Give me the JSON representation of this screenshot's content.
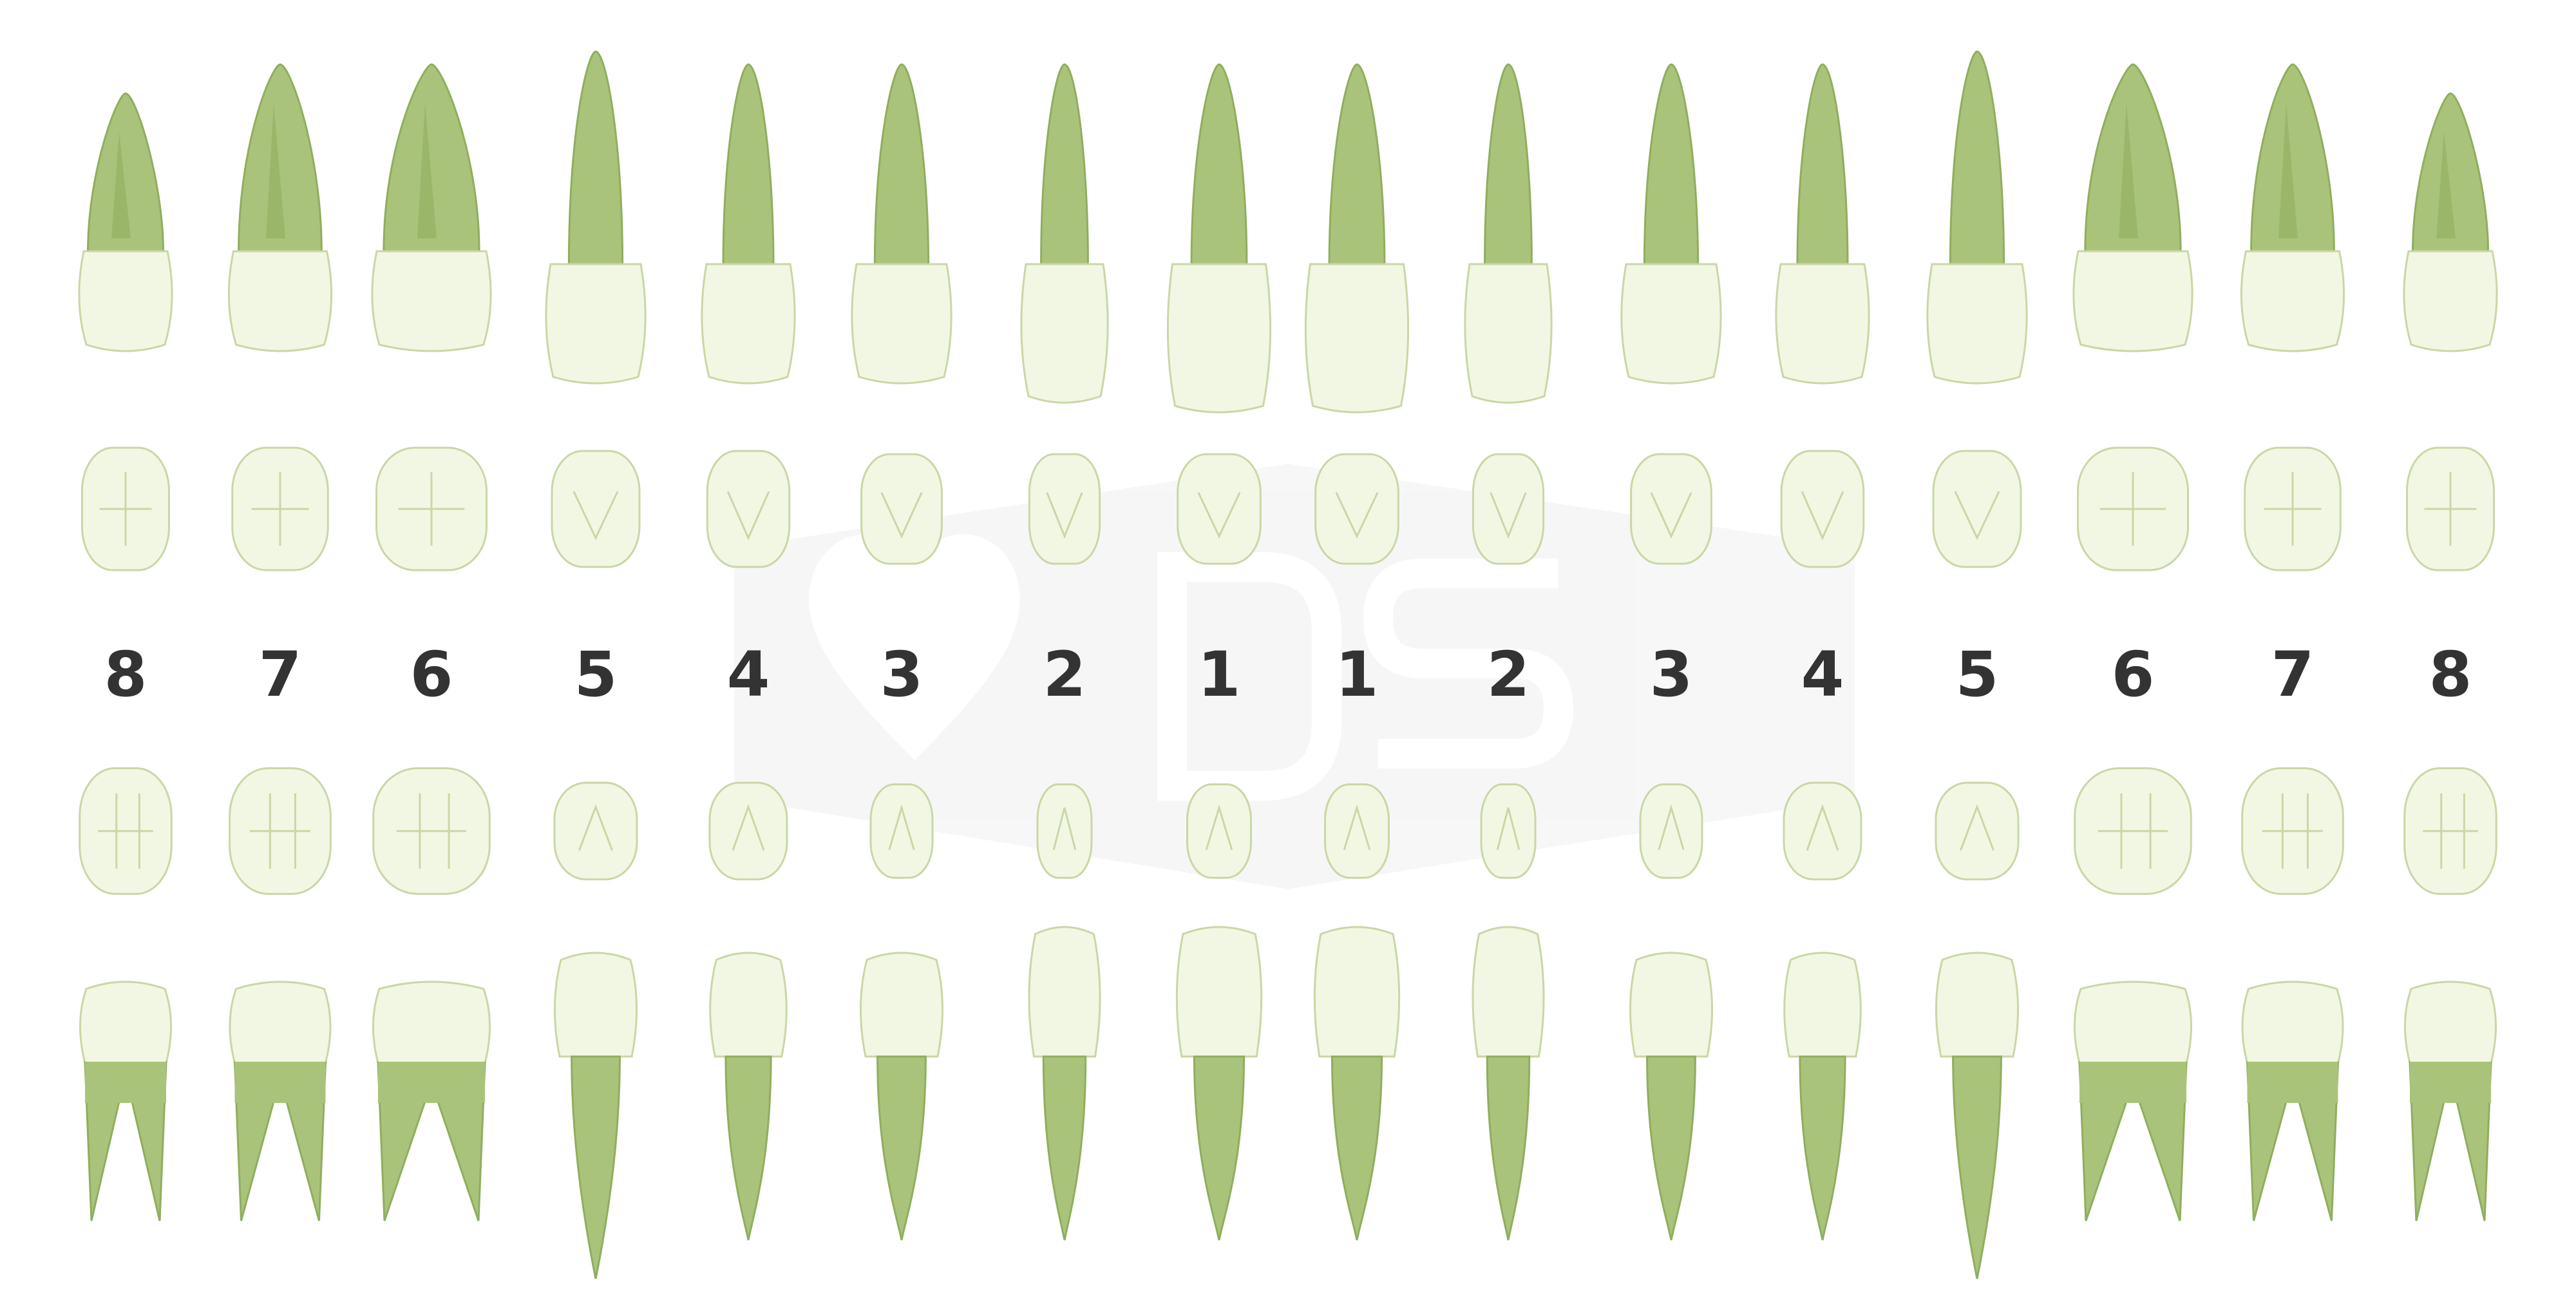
{
  "tooth_numbers": [
    "8",
    "7",
    "6",
    "5",
    "4",
    "3",
    "2",
    "1",
    "1",
    "2",
    "3",
    "4",
    "5",
    "6",
    "7",
    "8"
  ],
  "colors": {
    "root": "#a9c47a",
    "root_dark": "#8fae5e",
    "crown": "#f2f7e4",
    "crown_stroke": "#c9d7a6",
    "number": "#333333",
    "watermark": "#f0f0f0"
  },
  "watermark": {
    "type": "logo",
    "letters": "DS"
  }
}
